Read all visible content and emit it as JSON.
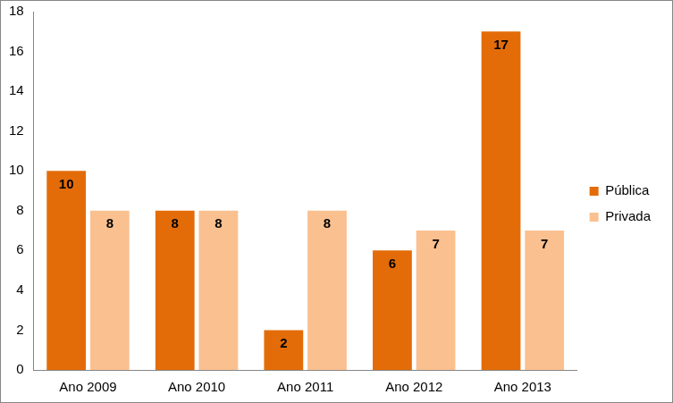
{
  "chart_data": {
    "type": "bar",
    "categories": [
      "Ano 2009",
      "Ano 2010",
      "Ano 2011",
      "Ano 2012",
      "Ano 2013"
    ],
    "series": [
      {
        "name": "Pública",
        "color": "#e36c09",
        "values": [
          10,
          8,
          2,
          6,
          17
        ]
      },
      {
        "name": "Privada",
        "color": "#fac090",
        "values": [
          8,
          8,
          8,
          7,
          7
        ]
      }
    ],
    "ylim": [
      0,
      18
    ],
    "yticks": [
      0,
      2,
      4,
      6,
      8,
      10,
      12,
      14,
      16,
      18
    ],
    "grid": false,
    "legend": "right",
    "data_labels": true
  }
}
